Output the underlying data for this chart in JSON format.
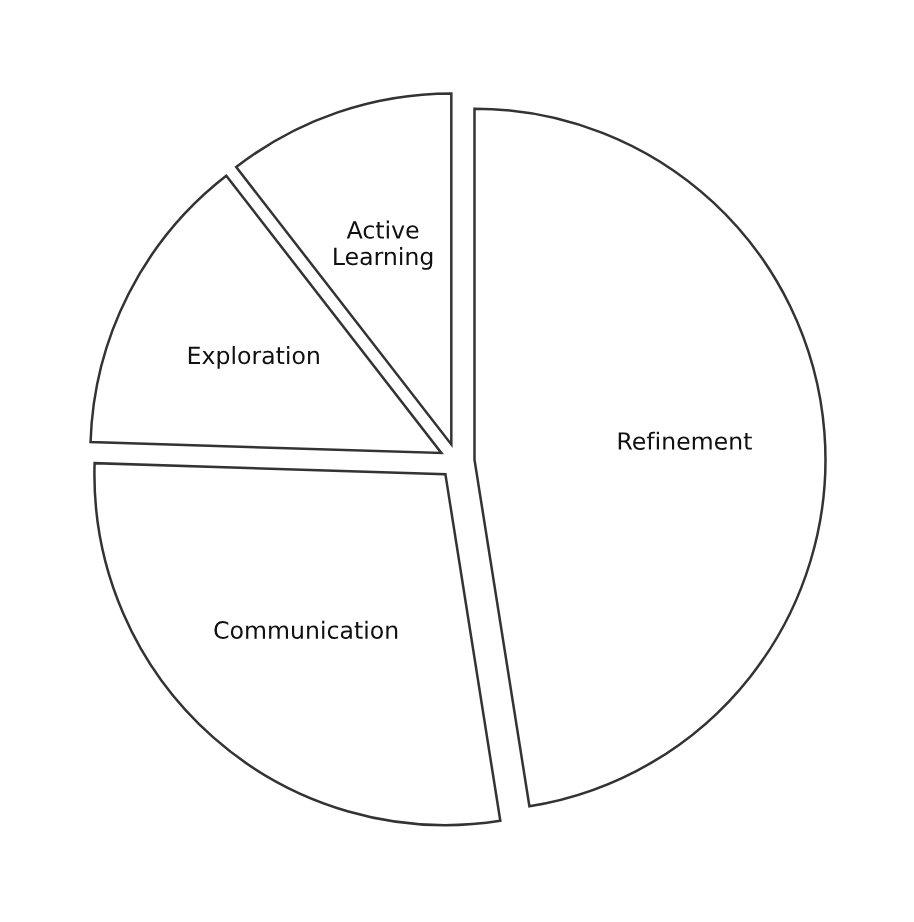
{
  "chart_data": {
    "type": "pie",
    "categories": [
      "Refinement",
      "Communication",
      "Exploration",
      "Active\nLearning"
    ],
    "values": [
      47.5,
      28,
      14,
      10.5
    ],
    "colors": [
      "#ffffff",
      "#ffffff",
      "#ffffff",
      "#ffffff"
    ]
  }
}
